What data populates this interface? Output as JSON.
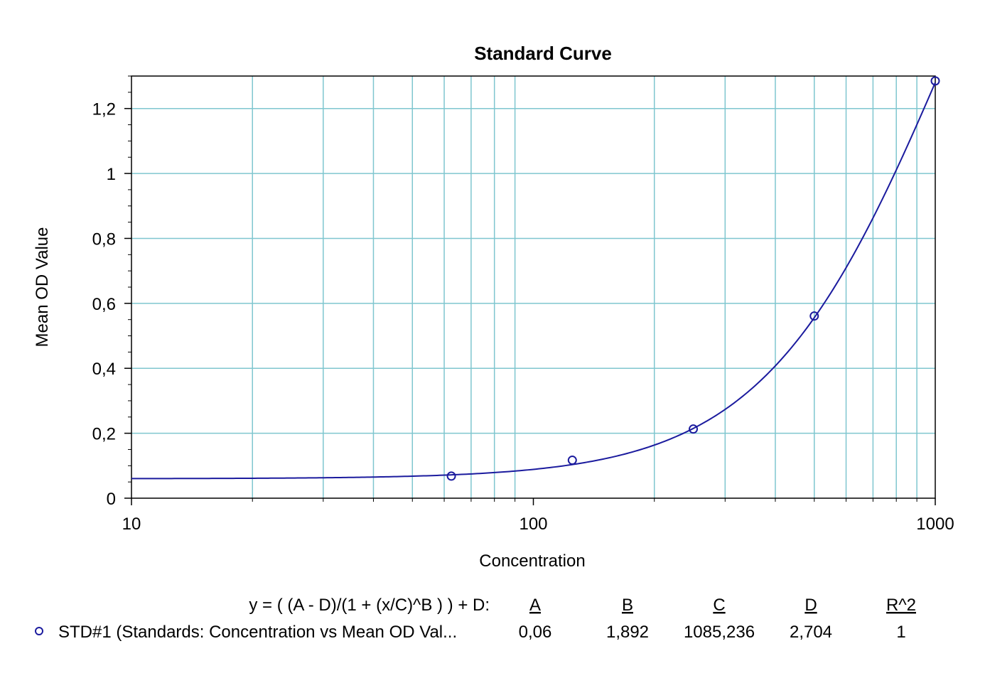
{
  "chart_data": {
    "type": "scatter",
    "title": "Standard Curve",
    "xlabel": "Concentration",
    "ylabel": "Mean OD Value",
    "x_scale": "log",
    "xlim": [
      10,
      1000
    ],
    "ylim": [
      0,
      1.3
    ],
    "grid": true,
    "x_ticks": [
      {
        "value": 10,
        "label": "10"
      },
      {
        "value": 100,
        "label": "100"
      },
      {
        "value": 1000,
        "label": "1000"
      }
    ],
    "y_ticks": [
      {
        "value": 0,
        "label": "0"
      },
      {
        "value": 0.2,
        "label": "0,2"
      },
      {
        "value": 0.4,
        "label": "0,4"
      },
      {
        "value": 0.6,
        "label": "0,6"
      },
      {
        "value": 0.8,
        "label": "0,8"
      },
      {
        "value": 1,
        "label": "1"
      },
      {
        "value": 1.2,
        "label": "1,2"
      }
    ],
    "series": [
      {
        "name": "STD#1 (Standards: Concentration vs Mean OD Val...",
        "x": [
          62.5,
          125,
          250,
          500,
          1000
        ],
        "y": [
          0.068,
          0.117,
          0.213,
          0.561,
          1.285
        ]
      }
    ],
    "fit": {
      "equation": "y = ( (A - D)/(1 + (x/C)^B ) ) + D:",
      "params": {
        "A": 0.06,
        "B": 1.892,
        "C": 1085.236,
        "D": 2.704
      },
      "headers": [
        "A",
        "B",
        "C",
        "D",
        "R^2"
      ],
      "values": [
        "0,06",
        "1,892",
        "1085,236",
        "2,704",
        "1"
      ]
    },
    "colors": {
      "series": "#1b1b9e",
      "grid": "#7fc6cf",
      "axis": "#000000"
    }
  }
}
